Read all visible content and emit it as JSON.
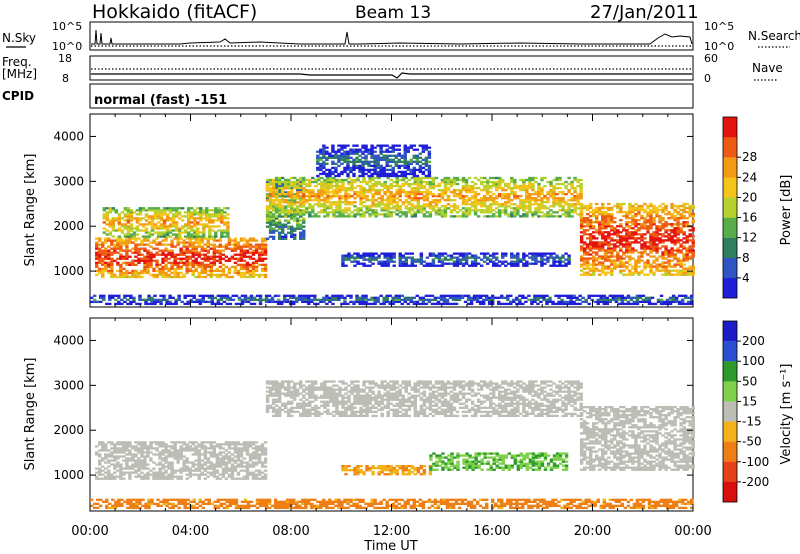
{
  "header": {
    "title": "Hokkaido (fitACF)",
    "beam": "Beam 13",
    "date": "27/Jan/2011"
  },
  "strips": {
    "nsky_label": "N.Sky",
    "nsky_ticks": [
      "10^5",
      "10^0"
    ],
    "nsearch_label": "N.Search",
    "nsearch_ticks": [
      "10^5",
      "10^0"
    ],
    "freq_label": "Freq.",
    "freq_unit": "[MHz]",
    "freq_ticks": [
      "18",
      "8"
    ],
    "nave_label": "Nave",
    "nave_ticks": [
      "60",
      "0"
    ],
    "cpid_label": "CPID",
    "cpid_value": "normal (fast) -151"
  },
  "colors": {
    "power": [
      "#1f1fd9",
      "#2e55c2",
      "#2f7f5e",
      "#56ad4a",
      "#b5d12d",
      "#f4c418",
      "#f39a14",
      "#ef5a12",
      "#e5140f"
    ],
    "velocity": [
      "#1c1cc6",
      "#2a4fd0",
      "#2e9a2e",
      "#7fd14a",
      "#bdbdb6",
      "#f2b31a",
      "#ef7f14",
      "#e6411a",
      "#d80f0f"
    ]
  },
  "chart_data": [
    {
      "type": "heatmap",
      "title": "",
      "xlabel": "",
      "ylabel": "Slant Range [km]",
      "x_ticks": [
        "00:00",
        "04:00",
        "08:00",
        "12:00",
        "16:00",
        "20:00",
        "00:00"
      ],
      "y_ticks": [
        "1000",
        "2000",
        "3000",
        "4000"
      ],
      "ylim": [
        200,
        4500
      ],
      "colorbar": {
        "label": "Power [dB]",
        "ticks": [
          "4",
          "8",
          "12",
          "16",
          "20",
          "24",
          "28"
        ],
        "range": [
          0,
          32
        ]
      },
      "features": [
        {
          "t_start": 0.2,
          "t_end": 7.0,
          "r_lo": 850,
          "r_hi": 1750,
          "level": 8
        },
        {
          "t_start": 0.5,
          "t_end": 5.5,
          "r_lo": 1750,
          "r_hi": 2400,
          "level": 6
        },
        {
          "t_start": 7.0,
          "t_end": 8.5,
          "r_lo": 1700,
          "r_hi": 3000,
          "level": 4
        },
        {
          "t_start": 7.0,
          "t_end": 19.5,
          "r_lo": 2200,
          "r_hi": 3100,
          "level": 6
        },
        {
          "t_start": 19.5,
          "t_end": 24.0,
          "r_lo": 900,
          "r_hi": 2500,
          "level": 8
        },
        {
          "t_start": 9.0,
          "t_end": 13.5,
          "r_lo": 3100,
          "r_hi": 3800,
          "level": 2
        },
        {
          "t_start": 10.0,
          "t_end": 19.0,
          "r_lo": 1100,
          "r_hi": 1400,
          "level": 2
        },
        {
          "t_start": 0.0,
          "t_end": 24.0,
          "r_lo": 250,
          "r_hi": 450,
          "level": 2
        }
      ]
    },
    {
      "type": "heatmap",
      "title": "",
      "xlabel": "Time UT",
      "ylabel": "Slant Range [km]",
      "x_ticks": [
        "00:00",
        "04:00",
        "08:00",
        "12:00",
        "16:00",
        "20:00",
        "00:00"
      ],
      "y_ticks": [
        "1000",
        "2000",
        "3000",
        "4000"
      ],
      "ylim": [
        200,
        4500
      ],
      "colorbar": {
        "label": "Velocity [m s⁻¹]",
        "ticks": [
          "200",
          "100",
          "50",
          "15",
          "-15",
          "-50",
          "-100",
          "-200"
        ],
        "range": [
          -250,
          250
        ]
      },
      "features": [
        {
          "t_start": 0.2,
          "t_end": 7.0,
          "r_lo": 900,
          "r_hi": 1750,
          "value": 0
        },
        {
          "t_start": 7.0,
          "t_end": 19.5,
          "r_lo": 2300,
          "r_hi": 3100,
          "value": 0
        },
        {
          "t_start": 19.5,
          "t_end": 24.0,
          "r_lo": 1100,
          "r_hi": 2500,
          "value": 0
        },
        {
          "t_start": 10.0,
          "t_end": 13.5,
          "r_lo": 1000,
          "r_hi": 1200,
          "value": -30
        },
        {
          "t_start": 13.5,
          "t_end": 19.0,
          "r_lo": 1100,
          "r_hi": 1500,
          "value": 30
        },
        {
          "t_start": 0.0,
          "t_end": 24.0,
          "r_lo": 250,
          "r_hi": 450,
          "value": -40
        }
      ]
    }
  ]
}
